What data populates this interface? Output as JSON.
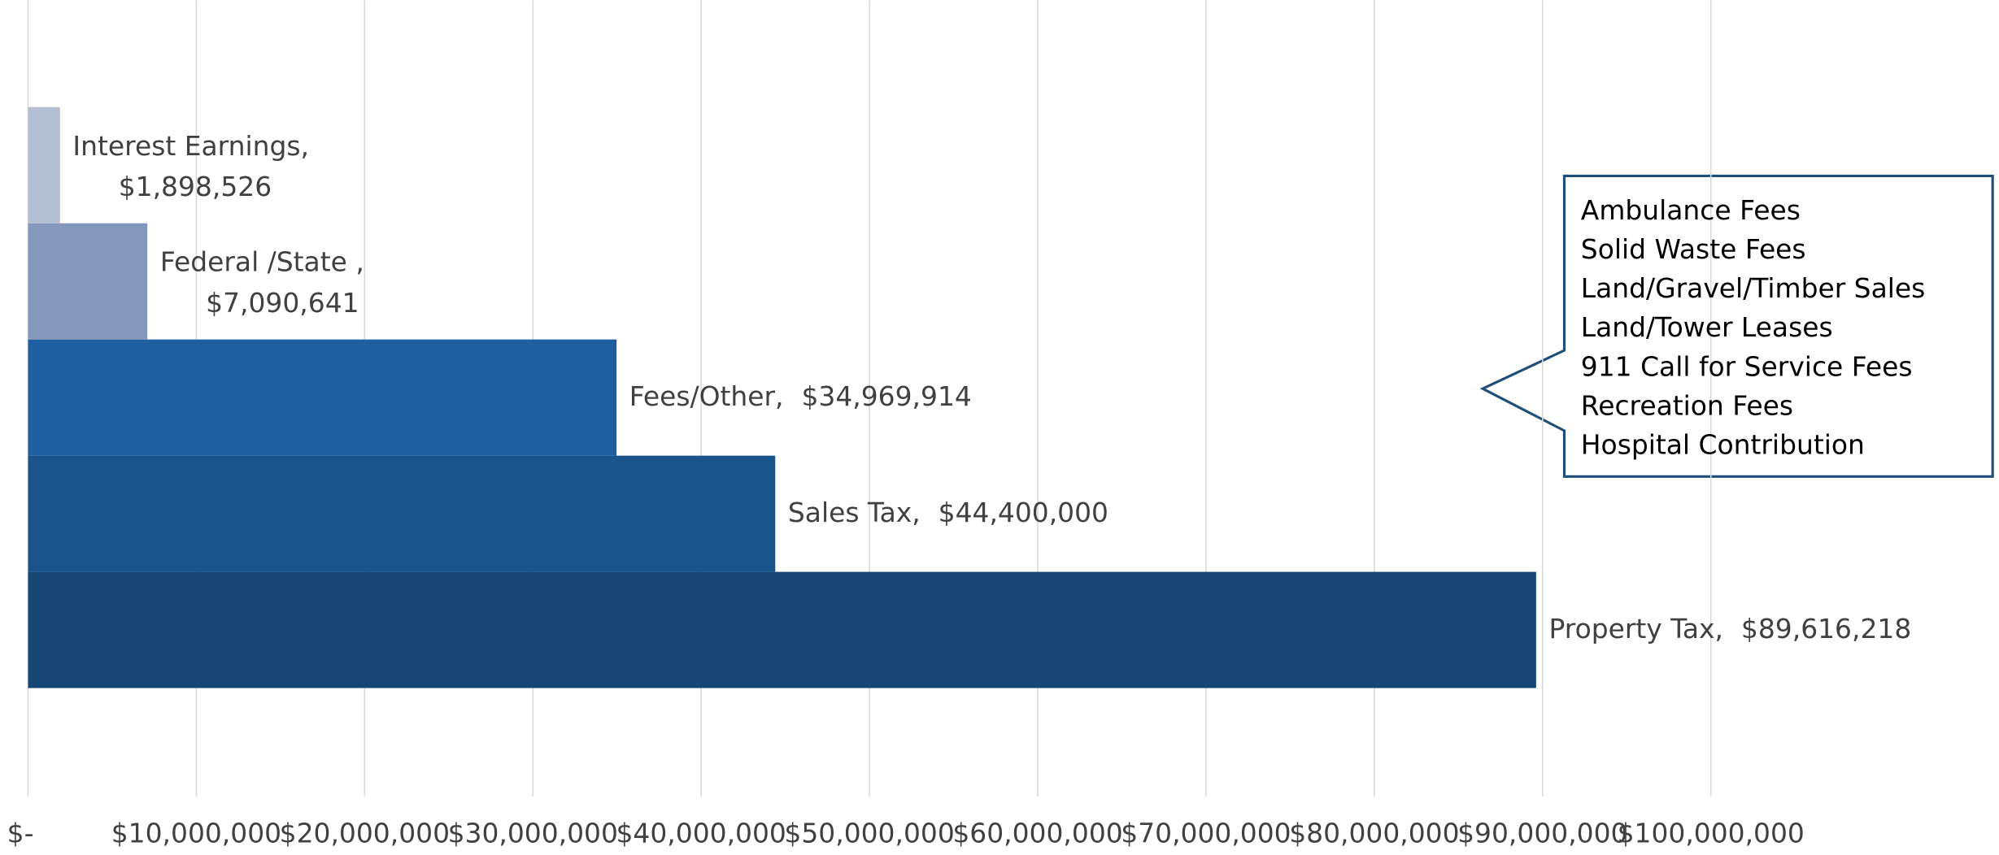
{
  "chart_data": {
    "type": "hbar",
    "categories": [
      "Property Tax,",
      "Sales Tax,",
      "Fees/Other,",
      "Federal /State ,",
      "Interest Earnings,"
    ],
    "values": [
      89616218,
      44400000,
      34969914,
      7090641,
      1898526
    ],
    "value_labels": [
      "$89,616,218",
      "$44,400,000",
      "$34,969,914",
      "$7,090,641",
      "$1,898,526"
    ],
    "colors": [
      "#174674",
      "#1a548a",
      "#1f5f9f",
      "#8598bc",
      "#b4bfd4"
    ],
    "xlim": [
      0,
      100000000
    ],
    "xticks": [
      {
        "value": 0,
        "label": "$-"
      },
      {
        "value": 10000000,
        "label": "$10,000,000"
      },
      {
        "value": 20000000,
        "label": "$20,000,000"
      },
      {
        "value": 30000000,
        "label": "$30,000,000"
      },
      {
        "value": 40000000,
        "label": "$40,000,000"
      },
      {
        "value": 50000000,
        "label": "$50,000,000"
      },
      {
        "value": 60000000,
        "label": "$60,000,000"
      },
      {
        "value": 70000000,
        "label": "$70,000,000"
      },
      {
        "value": 80000000,
        "label": "$80,000,000"
      },
      {
        "value": 90000000,
        "label": "$90,000,000"
      },
      {
        "value": 100000000,
        "label": "$100,000,000"
      }
    ],
    "grid": true,
    "annotation": {
      "lines": [
        "Ambulance Fees",
        "Solid Waste Fees",
        "Land/Gravel/Timber Sales",
        "Land/Tower Leases",
        "911 Call for Service Fees",
        "Recreation Fees",
        "Hospital Contribution"
      ]
    }
  }
}
